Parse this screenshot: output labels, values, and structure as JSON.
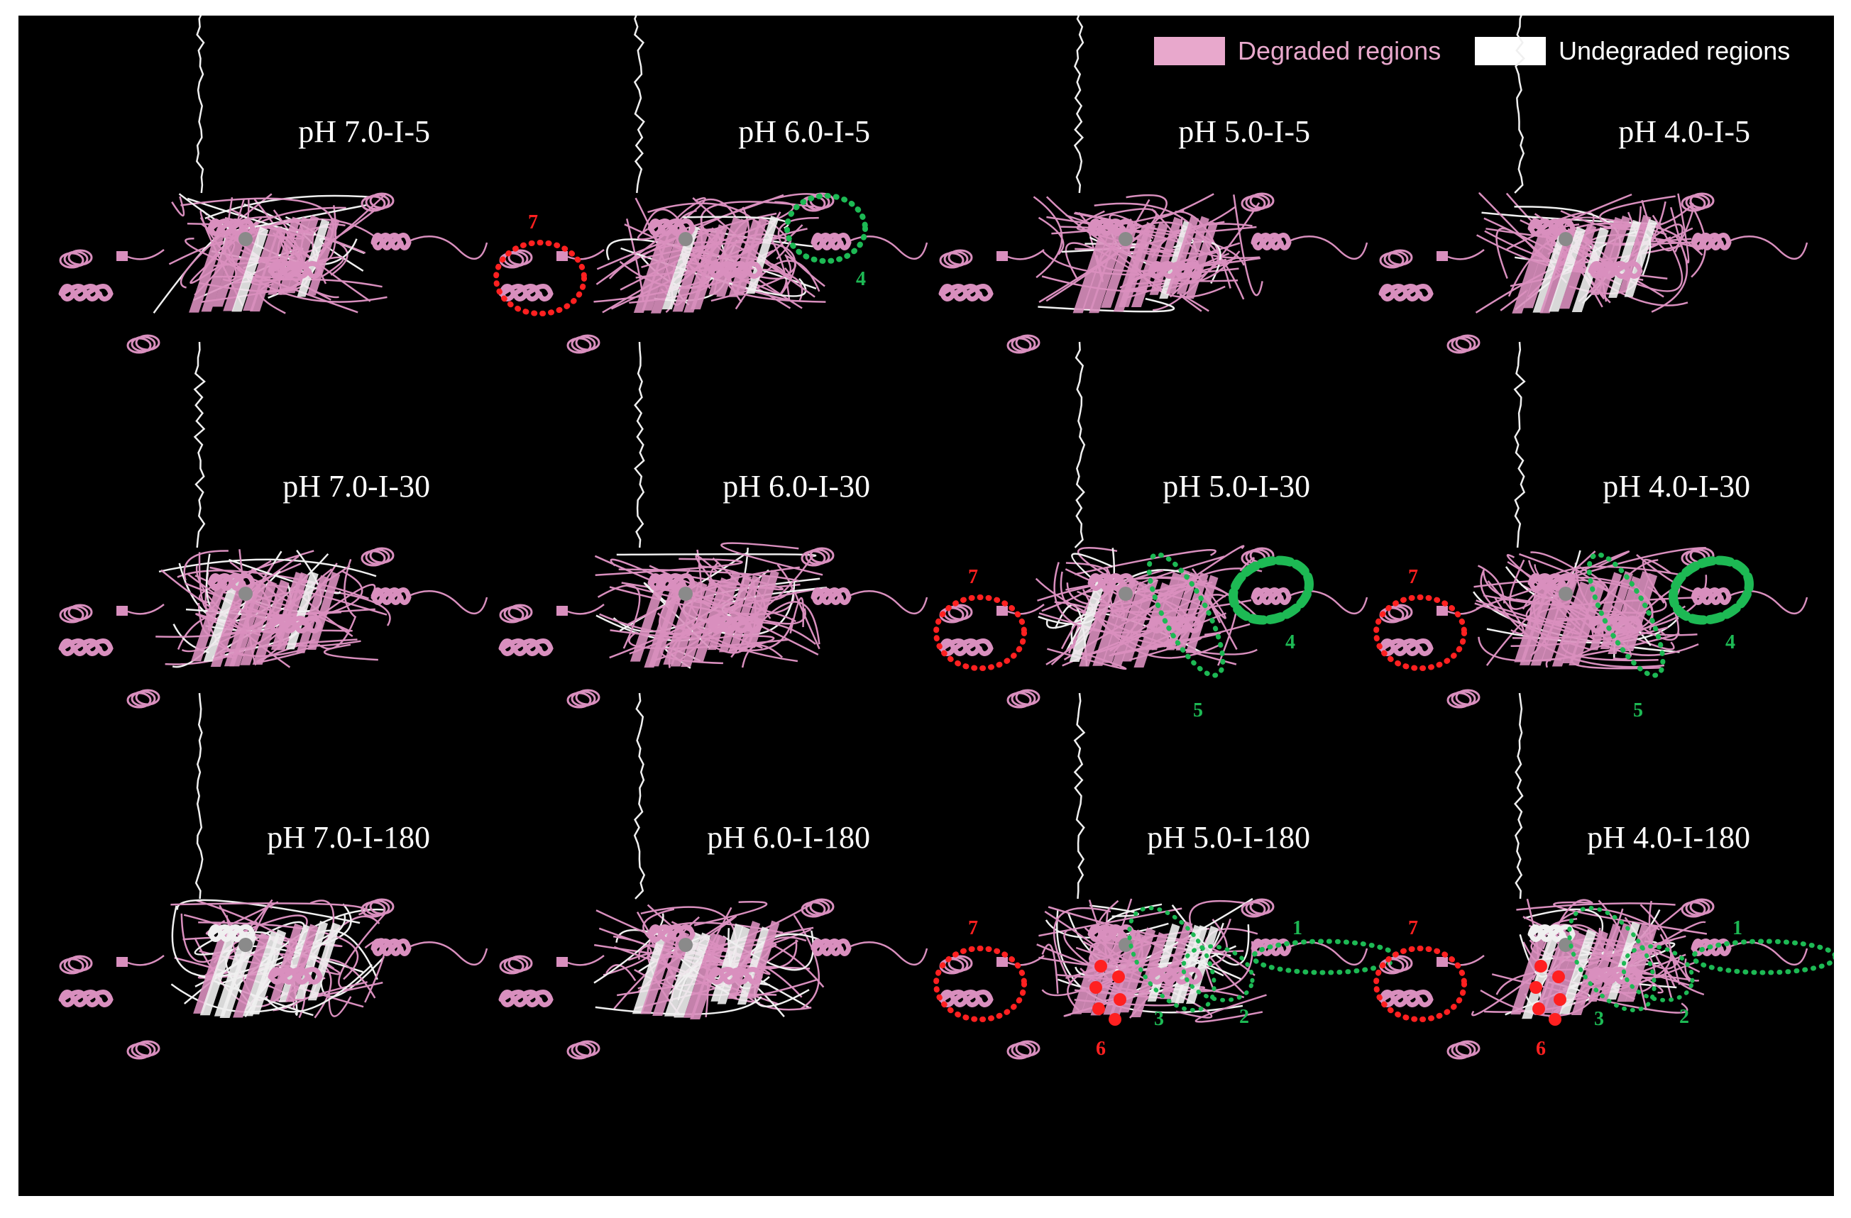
{
  "legend": {
    "items": [
      {
        "label": "Degraded regions",
        "swatch_color": "#e8a8cc",
        "text_color": "#e8a8cc"
      },
      {
        "label": "Undegraded regions",
        "swatch_color": "#ffffff",
        "text_color": "#ffffff"
      }
    ]
  },
  "colors": {
    "background": "#000000",
    "degraded": "#d98fbe",
    "undegraded": "#f0f0f0",
    "red_marker": "#ff2020",
    "green_marker": "#1db954"
  },
  "panels": [
    {
      "title": "pH 7.0-I-5",
      "row": 0,
      "col": 0,
      "white_level": 0.15,
      "markers": []
    },
    {
      "title": "pH 6.0-I-5",
      "row": 0,
      "col": 1,
      "white_level": 0.15,
      "markers": [
        {
          "kind": "dotted",
          "color": "red",
          "region": "7",
          "label": "7"
        },
        {
          "kind": "dotted",
          "color": "green",
          "region": "4",
          "label": "4"
        }
      ]
    },
    {
      "title": "pH 5.0-I-5",
      "row": 0,
      "col": 2,
      "white_level": 0.1,
      "markers": []
    },
    {
      "title": "pH 4.0-I-5",
      "row": 0,
      "col": 3,
      "white_level": 0.1,
      "markers": []
    },
    {
      "title": "pH 7.0-I-30",
      "row": 1,
      "col": 0,
      "white_level": 0.15,
      "markers": []
    },
    {
      "title": "pH 6.0-I-30",
      "row": 1,
      "col": 1,
      "white_level": 0.15,
      "markers": []
    },
    {
      "title": "pH 5.0-I-30",
      "row": 1,
      "col": 2,
      "white_level": 0.1,
      "markers": [
        {
          "kind": "dotted",
          "color": "red",
          "region": "7",
          "label": "7"
        },
        {
          "kind": "dashed",
          "color": "green",
          "region": "4",
          "label": "4"
        },
        {
          "kind": "dotted",
          "color": "green",
          "region": "5",
          "label": "5"
        }
      ]
    },
    {
      "title": "pH 4.0-I-30",
      "row": 1,
      "col": 3,
      "white_level": 0.1,
      "markers": [
        {
          "kind": "dotted",
          "color": "red",
          "region": "7",
          "label": "7"
        },
        {
          "kind": "dashed",
          "color": "green",
          "region": "4",
          "label": "4"
        },
        {
          "kind": "dotted",
          "color": "green",
          "region": "5",
          "label": "5"
        }
      ]
    },
    {
      "title": "pH 7.0-I-180",
      "row": 2,
      "col": 0,
      "white_level": 0.35,
      "markers": []
    },
    {
      "title": "pH 6.0-I-180",
      "row": 2,
      "col": 1,
      "white_level": 0.25,
      "markers": []
    },
    {
      "title": "pH 5.0-I-180",
      "row": 2,
      "col": 2,
      "white_level": 0.2,
      "markers": [
        {
          "kind": "dotted",
          "color": "red",
          "region": "7",
          "label": "7"
        },
        {
          "kind": "dots",
          "color": "red",
          "region": "6",
          "label": "6"
        },
        {
          "kind": "dotted",
          "color": "green",
          "region": "3",
          "label": "3"
        },
        {
          "kind": "dotted",
          "color": "green",
          "region": "2",
          "label": "2"
        },
        {
          "kind": "dotted",
          "color": "green",
          "region": "1",
          "label": "1"
        }
      ]
    },
    {
      "title": "pH 4.0-I-180",
      "row": 2,
      "col": 3,
      "white_level": 0.2,
      "markers": [
        {
          "kind": "dotted",
          "color": "red",
          "region": "7",
          "label": "7"
        },
        {
          "kind": "dots",
          "color": "red",
          "region": "6",
          "label": "6"
        },
        {
          "kind": "dotted",
          "color": "green",
          "region": "3",
          "label": "3"
        },
        {
          "kind": "dotted",
          "color": "green",
          "region": "2",
          "label": "2"
        },
        {
          "kind": "dotted",
          "color": "green",
          "region": "1",
          "label": "1"
        }
      ]
    }
  ]
}
